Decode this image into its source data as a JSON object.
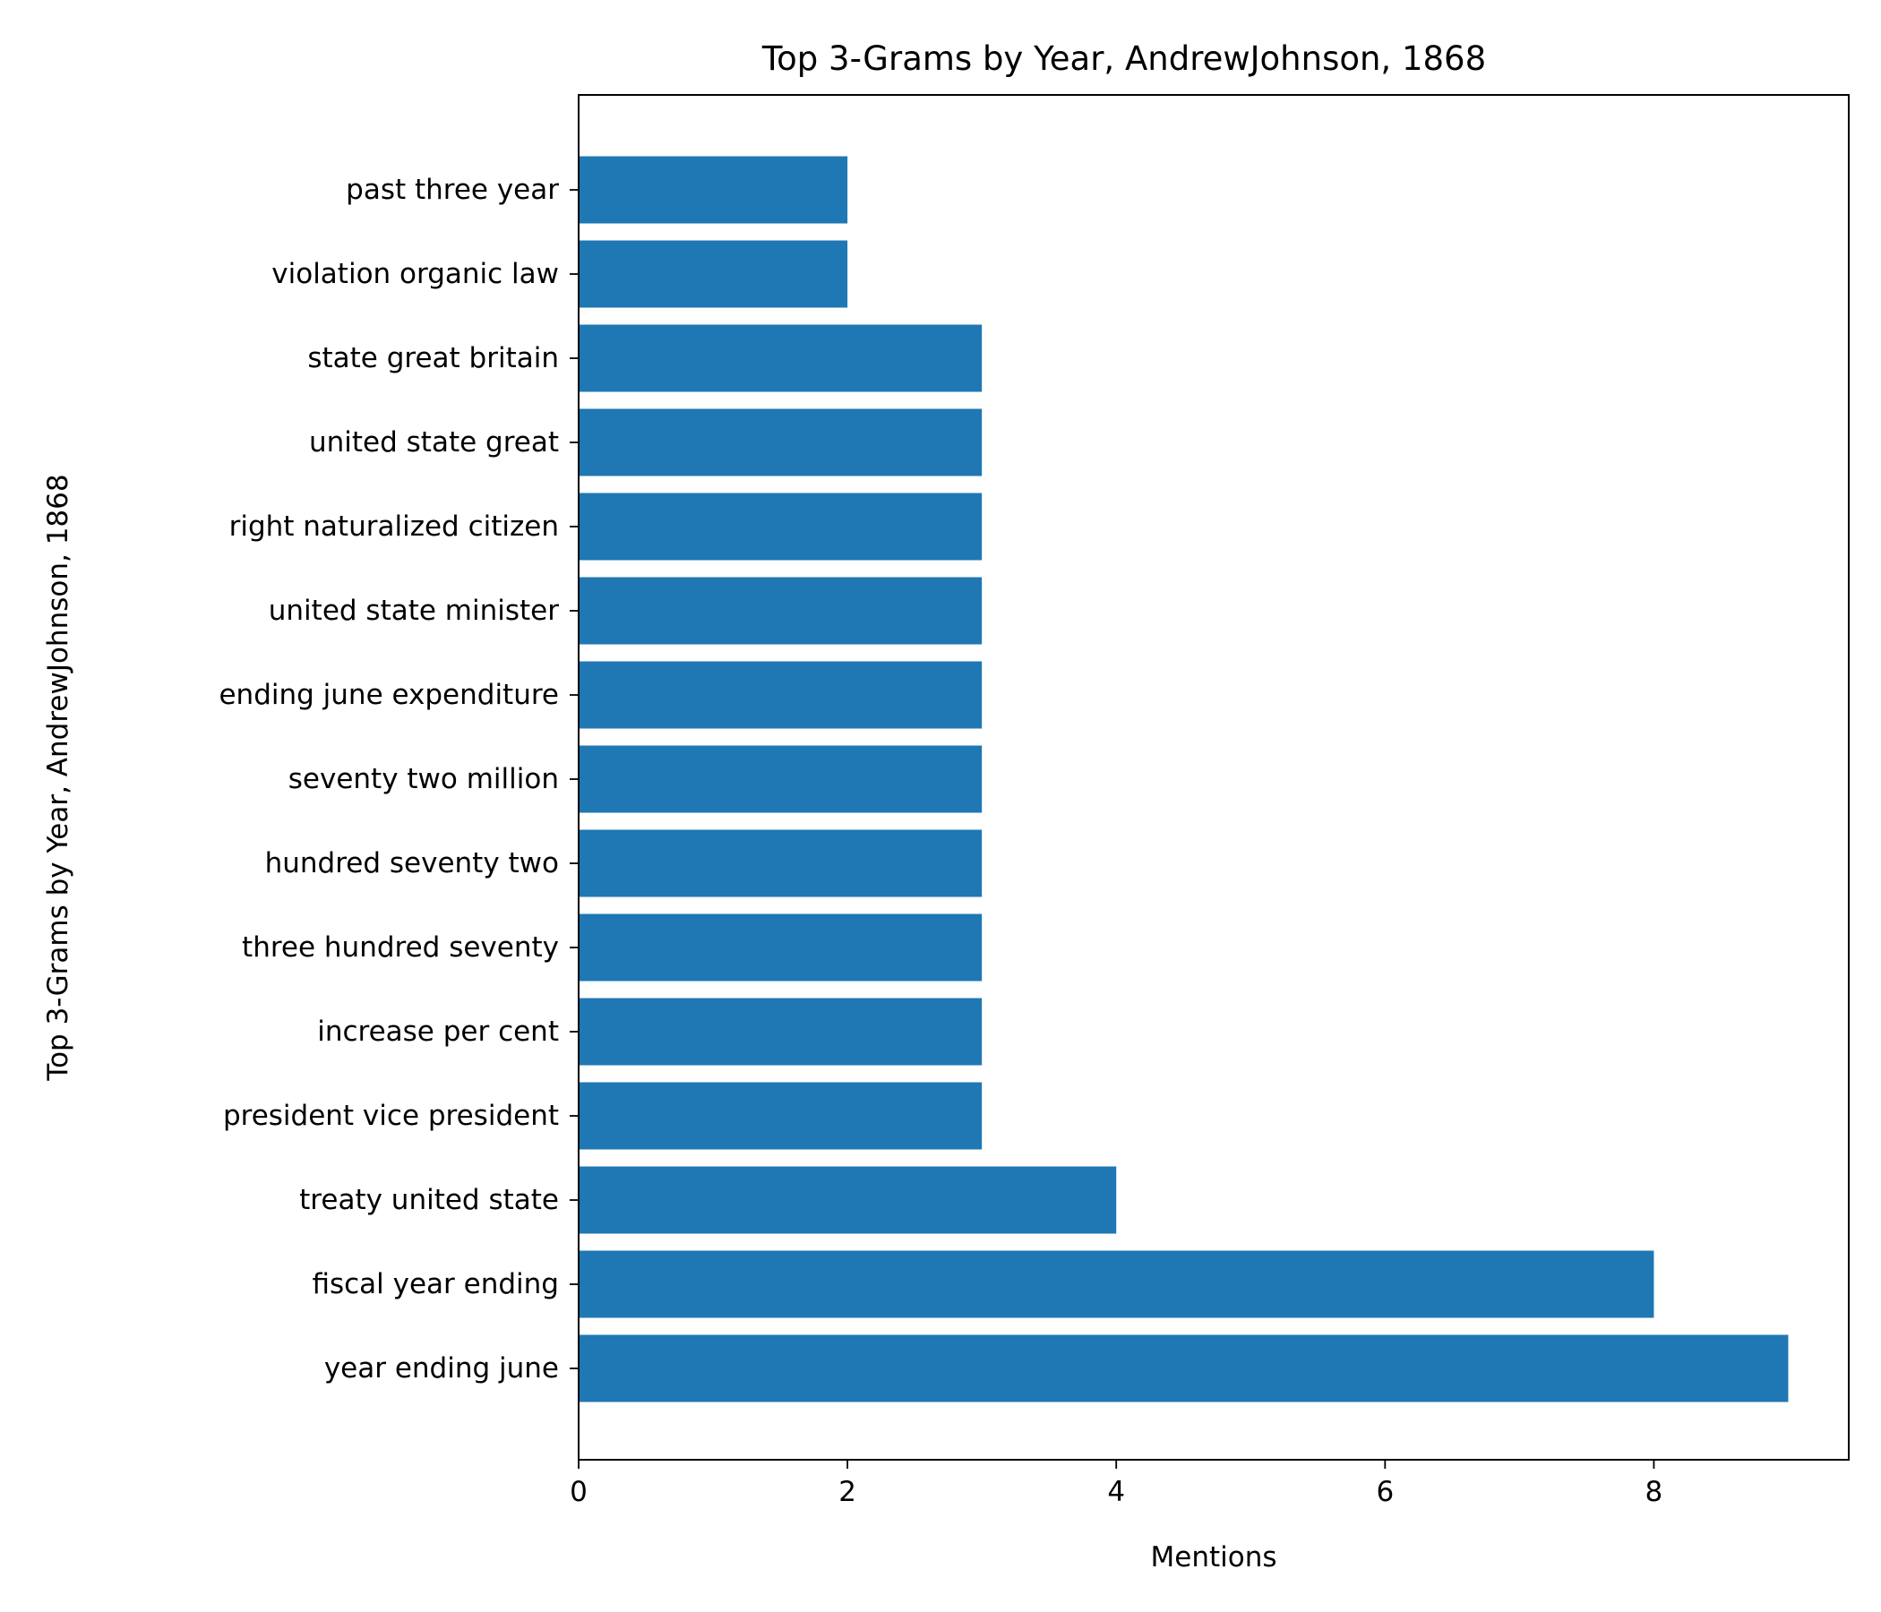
{
  "chart_data": {
    "type": "bar",
    "orientation": "horizontal",
    "title": "Top 3-Grams by Year, AndrewJohnson, 1868",
    "xlabel": "Mentions",
    "ylabel": "Top 3-Grams by Year, AndrewJohnson, 1868",
    "categories": [
      "year ending june",
      "fiscal year ending",
      "treaty united state",
      "president vice president",
      "increase per cent",
      "three hundred seventy",
      "hundred seventy two",
      "seventy two million",
      "ending june expenditure",
      "united state minister",
      "right naturalized citizen",
      "united state great",
      "state great britain",
      "violation organic law",
      "past three year"
    ],
    "values": [
      9,
      8,
      4,
      3,
      3,
      3,
      3,
      3,
      3,
      3,
      3,
      3,
      3,
      2,
      2
    ],
    "xlim": [
      0,
      9.45
    ],
    "xticks": [
      0,
      2,
      4,
      6,
      8
    ],
    "grid": false,
    "bar_color": "#1f77b4"
  }
}
